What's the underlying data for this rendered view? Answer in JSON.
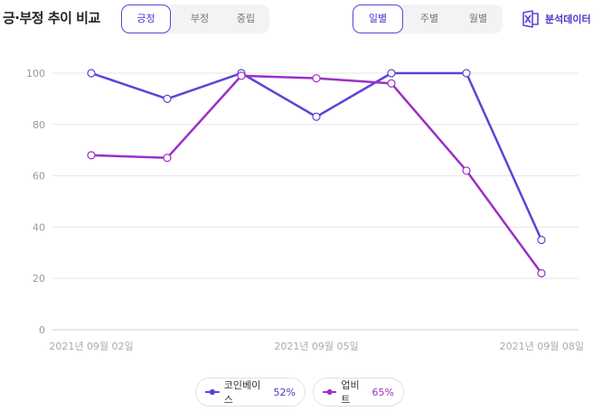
{
  "header": {
    "title": "긍·부정 추이 비교",
    "sentiment_tabs": [
      {
        "label": "긍정",
        "active": true
      },
      {
        "label": "부정",
        "active": false
      },
      {
        "label": "중립",
        "active": false
      }
    ],
    "period_tabs": [
      {
        "label": "일별",
        "active": true
      },
      {
        "label": "주별",
        "active": false
      },
      {
        "label": "월별",
        "active": false
      }
    ],
    "analysis_label": "분석데이터",
    "analysis_icon": "excel-icon"
  },
  "colors": {
    "accent": "#4a37c9",
    "series1": "#5a45d6",
    "series2": "#9b30c6",
    "grid": "#e6e6e6"
  },
  "chart_data": {
    "type": "line",
    "title": "",
    "xlabel": "",
    "ylabel": "",
    "ylim": [
      0,
      100
    ],
    "yticks": [
      0,
      20,
      40,
      60,
      80,
      100
    ],
    "x": [
      "2021-09-02 00:00",
      "2021-09-02 12:00",
      "2021-09-03 00:00",
      "2021-09-03 12:00",
      "2021-09-04 00:00",
      "2021-09-04 12:00",
      "2021-09-05 00:00",
      "2021-09-05 12:00",
      "2021-09-06 00:00",
      "2021-09-06 12:00",
      "2021-09-07 00:00",
      "2021-09-07 12:00",
      "2021-09-08 00:00"
    ],
    "xtick_labels": [
      "2021년 09월 02일",
      "2021년 09월 05일",
      "2021년 09월 08일"
    ],
    "grid": true,
    "legend_position": "bottom",
    "series": [
      {
        "name": "코인베이스",
        "percent": "52%",
        "color": "#5a45d6",
        "points": [
          [
            0,
            100
          ],
          [
            1,
            90
          ],
          [
            2,
            100
          ],
          [
            4,
            83
          ],
          [
            5,
            100
          ],
          [
            6,
            100
          ],
          [
            7,
            35
          ]
        ]
      },
      {
        "name": "업비트",
        "percent": "65%",
        "color": "#9b30c6",
        "points": [
          [
            0,
            68
          ],
          [
            1,
            67
          ],
          [
            2,
            99
          ],
          [
            3,
            98
          ],
          [
            4,
            96
          ],
          [
            5,
            62
          ],
          [
            6,
            22
          ]
        ]
      }
    ],
    "point_index_to_x": [
      0,
      2,
      4,
      8,
      10,
      12,
      14
    ]
  }
}
